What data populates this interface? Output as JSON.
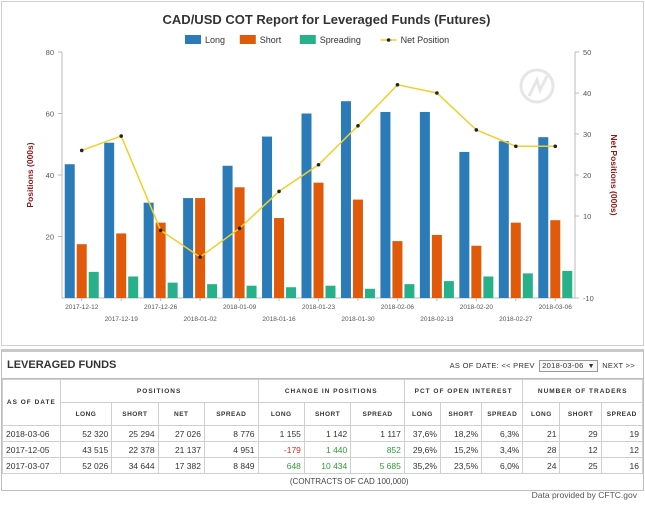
{
  "chart_data": {
    "type": "bar",
    "title": "CAD/USD COT Report for Leveraged Funds (Futures)",
    "ylabel": "Positions (000s)",
    "y2label": "Net Positions (000s)",
    "ylim": [
      0,
      80
    ],
    "y2lim": [
      -10,
      50
    ],
    "yticks": [
      20,
      40,
      60,
      80
    ],
    "y2ticks": [
      -10,
      10,
      20,
      30,
      40,
      50
    ],
    "categories": [
      "2017-12-12",
      "2017-12-19",
      "2017-12-26",
      "2018-01-02",
      "2018-01-09",
      "2018-01-16",
      "2018-01-23",
      "2018-01-30",
      "2018-02-06",
      "2018-02-13",
      "2018-02-20",
      "2018-02-27",
      "2018-03-06"
    ],
    "series": [
      {
        "name": "Long",
        "axis": "left",
        "kind": "bar",
        "color": "#2b7bb9",
        "values": [
          43.5,
          50.5,
          31,
          32.5,
          43,
          52.5,
          60,
          64,
          60.5,
          60.5,
          47.5,
          51,
          52.3
        ]
      },
      {
        "name": "Short",
        "axis": "left",
        "kind": "bar",
        "color": "#e05a0a",
        "values": [
          17.5,
          21,
          24.5,
          32.5,
          36,
          26,
          37.5,
          32,
          18.5,
          20.5,
          17,
          24.5,
          25.3
        ]
      },
      {
        "name": "Spreading",
        "axis": "left",
        "kind": "bar",
        "color": "#27b08a",
        "values": [
          8.5,
          7,
          5,
          4.5,
          4,
          3.5,
          4,
          3,
          4.5,
          5.5,
          7,
          8,
          8.8
        ]
      },
      {
        "name": "Net Position",
        "axis": "right",
        "kind": "line",
        "color": "#f0d028",
        "values": [
          26,
          29.5,
          6.5,
          0,
          7,
          16,
          22.5,
          32,
          42,
          40,
          31,
          27,
          27
        ]
      }
    ],
    "legend_position": "top",
    "grid": false
  },
  "table": {
    "title": "LEVERAGED FUNDS",
    "as_of_label": "AS OF DATE:",
    "prev_label": "<< PREV",
    "selected_date": "2018-03-06",
    "next_label": "NEXT >>",
    "groups": [
      "POSITIONS",
      "CHANGE IN POSITIONS",
      "PCT OF OPEN INTEREST",
      "NUMBER OF TRADERS"
    ],
    "as_of_header": "AS OF DATE",
    "columns": [
      "LONG",
      "SHORT",
      "NET",
      "SPREAD",
      "LONG",
      "SHORT",
      "SPREAD",
      "LONG",
      "SHORT",
      "SPREAD",
      "LONG",
      "SHORT",
      "SPREAD"
    ],
    "rows": [
      {
        "date": "2018-03-06",
        "cells": [
          "52 320",
          "25 294",
          "27 026",
          "8 776",
          "1 155",
          "1 142",
          "1 117",
          "37,6%",
          "18,2%",
          "6,3%",
          "21",
          "29",
          "19"
        ],
        "change_colors": [
          "",
          "",
          ""
        ]
      },
      {
        "date": "2017-12-05",
        "cells": [
          "43 515",
          "22 378",
          "21 137",
          "4 951",
          "-179",
          "1 440",
          "852",
          "29,6%",
          "15,2%",
          "3,4%",
          "28",
          "12",
          "12"
        ],
        "change_colors": [
          "neg",
          "pos",
          "pos"
        ]
      },
      {
        "date": "2017-03-07",
        "cells": [
          "52 026",
          "34 644",
          "17 382",
          "8 849",
          "648",
          "10 434",
          "5 685",
          "35,2%",
          "23,5%",
          "6,0%",
          "24",
          "25",
          "16"
        ],
        "change_colors": [
          "pos",
          "pos",
          "pos"
        ]
      }
    ],
    "note": "(CONTRACTS OF CAD 100,000)"
  },
  "footer": "Data provided by CFTC.gov"
}
